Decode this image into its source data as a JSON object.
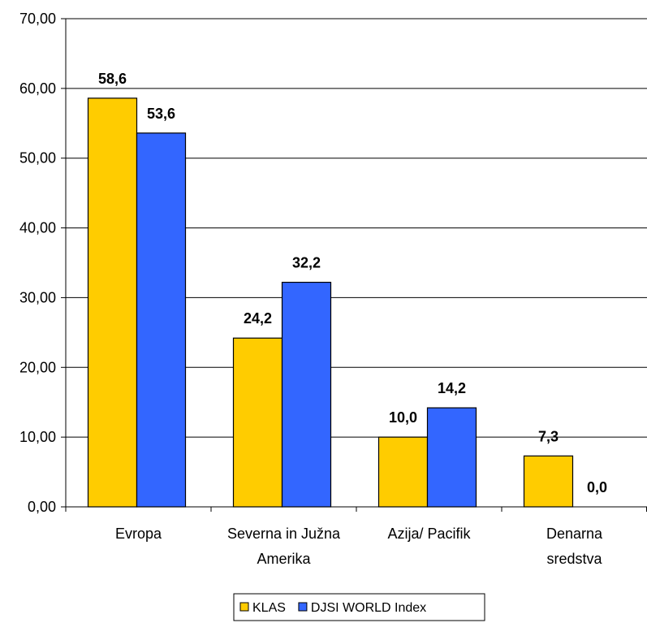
{
  "chart_data": {
    "type": "bar",
    "title": "",
    "xlabel": "",
    "ylabel": "",
    "ylim": [
      0,
      70
    ],
    "yticks": [
      "0,00",
      "10,00",
      "20,00",
      "30,00",
      "40,00",
      "50,00",
      "60,00",
      "70,00"
    ],
    "grid": true,
    "legend_position": "bottom",
    "categories": [
      [
        "Evropa"
      ],
      [
        "Severna in Južna",
        "Amerika"
      ],
      [
        "Azija/ Pacifik"
      ],
      [
        "Denarna",
        "sredstva"
      ]
    ],
    "series": [
      {
        "name": "KLAS",
        "color": "#FFCC00",
        "values": [
          58.6,
          24.2,
          10.0,
          7.3
        ],
        "labels": [
          "58,6",
          "24,2",
          "10,0",
          "7,3"
        ]
      },
      {
        "name": "DJSI WORLD Index",
        "color": "#3366FF",
        "values": [
          53.6,
          32.2,
          14.2,
          0.0
        ],
        "labels": [
          "53,6",
          "32,2",
          "14,2",
          "0,0"
        ]
      }
    ]
  }
}
